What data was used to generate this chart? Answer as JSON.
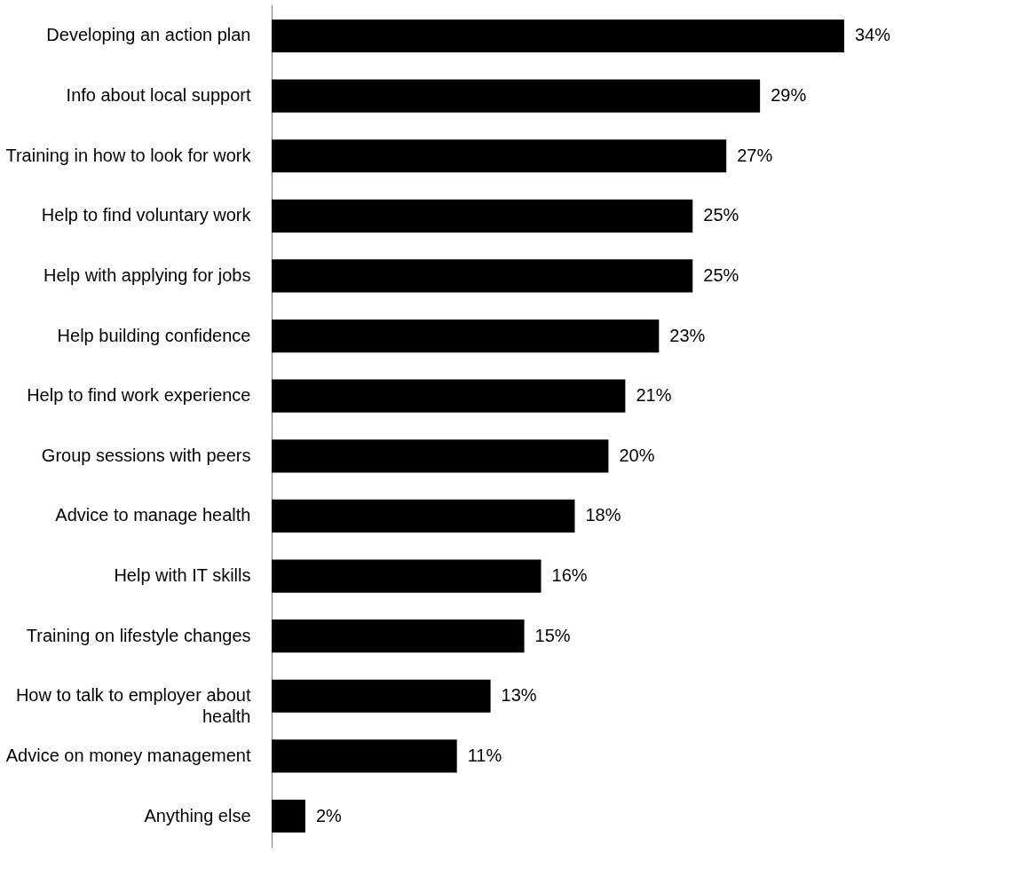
{
  "chart_data": {
    "type": "bar",
    "orientation": "horizontal",
    "categories": [
      "Developing an action plan",
      "Info about local support",
      "Training in how to look for work",
      "Help to find voluntary work",
      "Help with applying for jobs",
      "Help building confidence",
      "Help to find work experience",
      "Group sessions with peers",
      "Advice to manage health",
      "Help with IT skills",
      "Training on lifestyle changes",
      "How to talk to employer about\nhealth",
      "Advice on money management",
      "Anything else"
    ],
    "values": [
      34,
      29,
      27,
      25,
      25,
      23,
      21,
      20,
      18,
      16,
      15,
      13,
      11,
      2
    ],
    "value_labels": [
      "34%",
      "29%",
      "27%",
      "25%",
      "25%",
      "23%",
      "21%",
      "20%",
      "18%",
      "16%",
      "15%",
      "13%",
      "11%",
      "2%"
    ],
    "color": "#000000",
    "tick_labels": "y"
  }
}
